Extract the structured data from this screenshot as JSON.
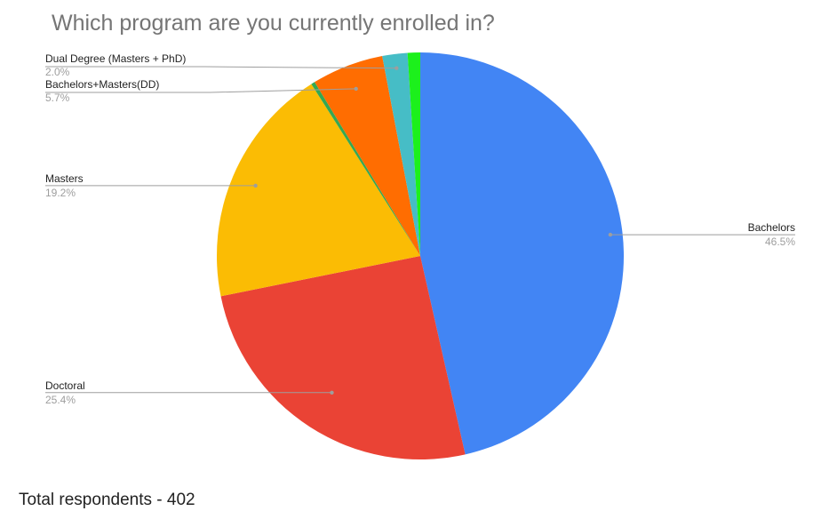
{
  "chart_data": {
    "type": "pie",
    "title": "Which program are you currently enrolled in?",
    "start_angle_deg": 0,
    "direction": "clockwise",
    "slices": [
      {
        "label": "Bachelors",
        "percent_label": "46.5%",
        "value": 46.5,
        "color": "#4285f4",
        "show_label": true
      },
      {
        "label": "Doctoral",
        "percent_label": "25.4%",
        "value": 25.4,
        "color": "#ea4335",
        "show_label": true
      },
      {
        "label": "Masters",
        "percent_label": "19.2%",
        "value": 19.2,
        "color": "#fbbc04",
        "show_label": true
      },
      {
        "label": "",
        "percent_label": "",
        "value": 0.3,
        "color": "#34a853",
        "show_label": false
      },
      {
        "label": "Bachelors+Masters(DD)",
        "percent_label": "5.7%",
        "value": 5.7,
        "color": "#ff6d01",
        "show_label": true
      },
      {
        "label": "Dual Degree (Masters + PhD)",
        "percent_label": "2.0%",
        "value": 2.0,
        "color": "#46bdc6",
        "show_label": true
      },
      {
        "label": "",
        "percent_label": "",
        "value": 1.0,
        "color": "#1cf01c",
        "show_label": false
      }
    ]
  },
  "footer": {
    "text": "Total respondents - 402"
  }
}
